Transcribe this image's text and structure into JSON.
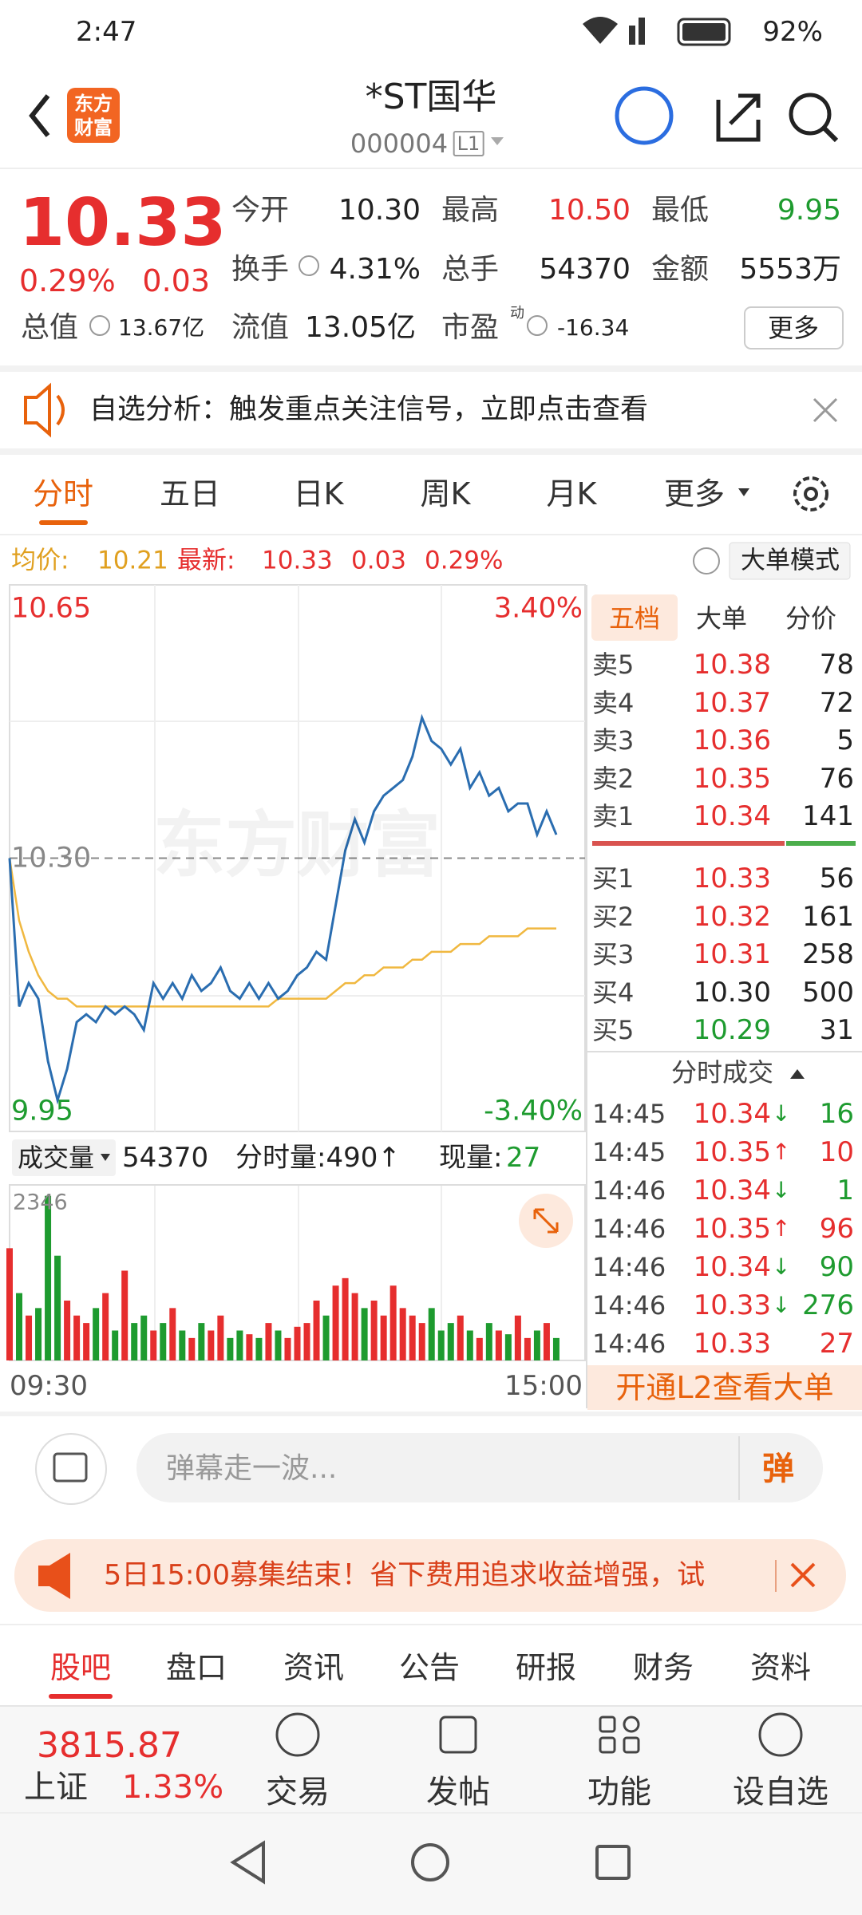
{
  "status_bar": {
    "time": "2:47",
    "battery": "92%"
  },
  "header": {
    "logo": [
      "东方",
      "财富"
    ],
    "title": "*ST国华",
    "code": "000004",
    "level": "L1"
  },
  "quote": {
    "price": "10.33",
    "change_pct": "0.29%",
    "change": "0.03",
    "prev_close": 10.3,
    "fields": [
      {
        "label": "今开",
        "value": "10.30"
      },
      {
        "label": "最高",
        "value": "10.50"
      },
      {
        "label": "最低",
        "value": "9.95"
      },
      {
        "label": "换手",
        "value": "4.31%"
      },
      {
        "label": "总手",
        "value": "54370"
      },
      {
        "label": "金额",
        "value": "5553万"
      },
      {
        "label": "总值",
        "value": "13.67亿"
      },
      {
        "label": "流值",
        "value": "13.05亿"
      },
      {
        "label": "市盈",
        "sup": "动",
        "value": "-16.34"
      }
    ],
    "more": "更多"
  },
  "notice": "自选分析：触发重点关注信号，立即点击查看",
  "tabs": [
    "分时",
    "五日",
    "日K",
    "周K",
    "月K",
    "更多"
  ],
  "info": {
    "avg_label": "均价:",
    "avg": "10.21",
    "last_label": "最新:",
    "last": "10.33",
    "change": "0.03",
    "pct": "0.29%",
    "mode": "大单模式"
  },
  "intraday": {
    "watermark": "东方财富",
    "ylim": [
      9.95,
      10.65
    ],
    "yticks": [
      9.95,
      {
        "value": 10.3,
        "label": "10.30"
      },
      10.65
    ],
    "pct_labels": [
      "3.40%",
      "-3.40%"
    ],
    "xlabels": [
      "09:30",
      "15:00"
    ],
    "price": [
      10.3,
      10.11,
      10.14,
      10.12,
      10.04,
      9.99,
      10.03,
      10.09,
      10.1,
      10.09,
      10.11,
      10.1,
      10.11,
      10.1,
      10.08,
      10.14,
      10.12,
      10.14,
      10.12,
      10.15,
      10.13,
      10.14,
      10.16,
      10.13,
      10.12,
      10.14,
      10.12,
      10.14,
      10.12,
      10.13,
      10.15,
      10.16,
      10.18,
      10.17,
      10.24,
      10.31,
      10.35,
      10.32,
      10.36,
      10.38,
      10.39,
      10.4,
      10.43,
      10.48,
      10.45,
      10.44,
      10.42,
      10.44,
      10.39,
      10.41,
      10.38,
      10.39,
      10.36,
      10.37,
      10.37,
      10.33,
      10.36,
      10.33
    ],
    "avg_price": [
      10.3,
      10.22,
      10.18,
      10.15,
      10.13,
      10.12,
      10.12,
      10.11,
      10.11,
      10.11,
      10.11,
      10.11,
      10.11,
      10.11,
      10.11,
      10.11,
      10.11,
      10.11,
      10.11,
      10.11,
      10.11,
      10.11,
      10.11,
      10.11,
      10.11,
      10.11,
      10.11,
      10.11,
      10.12,
      10.12,
      10.12,
      10.12,
      10.12,
      10.12,
      10.13,
      10.14,
      10.14,
      10.15,
      10.15,
      10.16,
      10.16,
      10.16,
      10.17,
      10.17,
      10.18,
      10.18,
      10.18,
      10.19,
      10.19,
      10.19,
      10.2,
      10.2,
      10.2,
      10.2,
      10.21,
      10.21,
      10.21,
      10.21
    ]
  },
  "volume_header": {
    "label": "成交量",
    "total": "54370",
    "minute": "分时量:490↑",
    "current_label": "现量:",
    "current": "27"
  },
  "volume": {
    "ylim": [
      0,
      2346
    ],
    "yticks": [
      2346
    ],
    "values": [
      1500,
      900,
      600,
      700,
      2200,
      1400,
      800,
      600,
      500,
      700,
      900,
      400,
      1200,
      500,
      600,
      400,
      500,
      700,
      400,
      300,
      500,
      400,
      600,
      300,
      400,
      350,
      300,
      500,
      400,
      300,
      450,
      500,
      800,
      600,
      1000,
      1100,
      900,
      700,
      800,
      600,
      1000,
      700,
      600,
      500,
      700,
      400,
      500,
      600,
      400,
      300,
      500,
      400,
      350,
      600,
      300,
      400,
      500,
      300
    ]
  },
  "order_book": {
    "tabs": [
      "五档",
      "大单",
      "分价"
    ],
    "asks": [
      {
        "label": "卖5",
        "price": "10.38",
        "volume": "78"
      },
      {
        "label": "卖4",
        "price": "10.37",
        "volume": "72"
      },
      {
        "label": "卖3",
        "price": "10.36",
        "volume": "5"
      },
      {
        "label": "卖2",
        "price": "10.35",
        "volume": "76"
      },
      {
        "label": "卖1",
        "price": "10.34",
        "volume": "141"
      }
    ],
    "bids": [
      {
        "label": "买1",
        "price": "10.33",
        "volume": "56"
      },
      {
        "label": "买2",
        "price": "10.32",
        "volume": "161"
      },
      {
        "label": "买3",
        "price": "10.31",
        "volume": "258"
      },
      {
        "label": "买4",
        "price": "10.30",
        "volume": "500"
      },
      {
        "label": "买5",
        "price": "10.29",
        "volume": "31"
      }
    ]
  },
  "trades": {
    "title": "分时成交",
    "rows": [
      {
        "time": "14:45",
        "price": "10.34",
        "dir": "↓",
        "volume": "16"
      },
      {
        "time": "14:45",
        "price": "10.35",
        "dir": "↑",
        "volume": "10"
      },
      {
        "time": "14:46",
        "price": "10.34",
        "dir": "↓",
        "volume": "1"
      },
      {
        "time": "14:46",
        "price": "10.35",
        "dir": "↑",
        "volume": "96"
      },
      {
        "time": "14:46",
        "price": "10.34",
        "dir": "↓",
        "volume": "90"
      },
      {
        "time": "14:46",
        "price": "10.33",
        "dir": "↓",
        "volume": "276"
      },
      {
        "time": "14:46",
        "price": "10.33",
        "volume": "27"
      }
    ],
    "l2_button": "开通L2查看大单"
  },
  "comment": {
    "placeholder": "弹幕走一波...",
    "button": "弹"
  },
  "ad": "5日15:00募集结束！省下费用追求收益增强，试",
  "bottom_tabs": [
    "股吧",
    "盘口",
    "资讯",
    "公告",
    "研报",
    "财务",
    "资料"
  ],
  "index": {
    "value": "3815.87",
    "name": "上证",
    "pct": "1.33%"
  },
  "nav": [
    "交易",
    "发帖",
    "功能",
    "设自选"
  ]
}
